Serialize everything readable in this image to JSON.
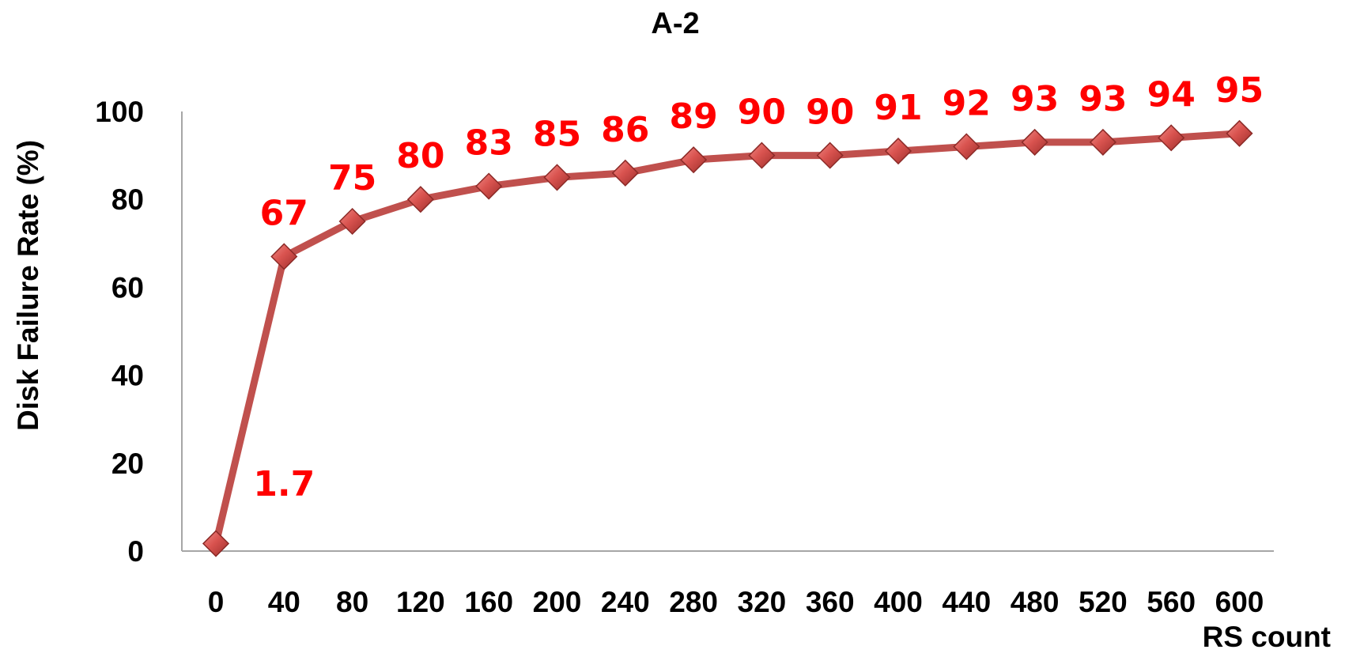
{
  "chart_data": {
    "type": "line",
    "title": "A-2",
    "xlabel": "RS count",
    "ylabel": "Disk Failure Rate (%)",
    "x": [
      0,
      40,
      80,
      120,
      160,
      200,
      240,
      280,
      320,
      360,
      400,
      440,
      480,
      520,
      560,
      600
    ],
    "x_tick_labels": [
      "0",
      "40",
      "80",
      "120",
      "160",
      "200",
      "240",
      "280",
      "320",
      "360",
      "400",
      "440",
      "480",
      "520",
      "560",
      "600"
    ],
    "series": [
      {
        "values": [
          1.7,
          67,
          75,
          80,
          83,
          85,
          86,
          89,
          90,
          90,
          91,
          92,
          93,
          93,
          94,
          95
        ],
        "data_labels": [
          "1.7",
          "67",
          "75",
          "80",
          "83",
          "85",
          "86",
          "89",
          "90",
          "90",
          "91",
          "92",
          "93",
          "93",
          "94",
          "95"
        ],
        "color": "#c0504d",
        "marker": "diamond"
      }
    ],
    "ylim": [
      0,
      100
    ],
    "y_ticks": [
      0,
      20,
      40,
      60,
      80,
      100
    ],
    "y_tick_labels": [
      "0",
      "20",
      "40",
      "60",
      "80",
      "100"
    ],
    "grid": false,
    "legend": "none",
    "colors": {
      "line": "#c0504d",
      "marker_fill": "#c0504d",
      "data_label": "#ff0000",
      "axis": "#a6a6a6",
      "text": "#000000"
    }
  }
}
